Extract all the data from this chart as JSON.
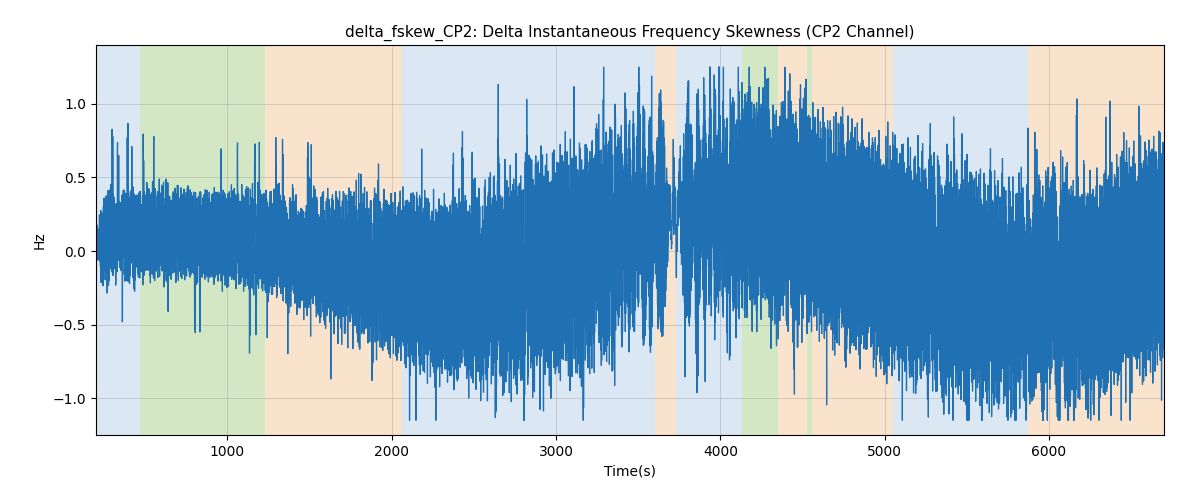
{
  "title": "delta_fskew_CP2: Delta Instantaneous Frequency Skewness (CP2 Channel)",
  "xlabel": "Time(s)",
  "ylabel": "Hz",
  "xlim": [
    200,
    6700
  ],
  "ylim": [
    -1.25,
    1.4
  ],
  "yticks": [
    -1.0,
    -0.5,
    0.0,
    0.5,
    1.0
  ],
  "xticks": [
    1000,
    2000,
    3000,
    4000,
    5000,
    6000
  ],
  "line_color": "#2070b4",
  "line_width": 0.9,
  "figsize": [
    12.0,
    5.0
  ],
  "dpi": 100,
  "background_color": "#ffffff",
  "bands": [
    {
      "xmin": 200,
      "xmax": 470,
      "color": "#b8d0e8",
      "alpha": 0.5
    },
    {
      "xmin": 470,
      "xmax": 1230,
      "color": "#a8d08a",
      "alpha": 0.5
    },
    {
      "xmin": 1230,
      "xmax": 2060,
      "color": "#f5c89a",
      "alpha": 0.5
    },
    {
      "xmin": 2060,
      "xmax": 3600,
      "color": "#b8d0e8",
      "alpha": 0.5
    },
    {
      "xmin": 3600,
      "xmax": 3730,
      "color": "#f5c89a",
      "alpha": 0.5
    },
    {
      "xmin": 3730,
      "xmax": 4130,
      "color": "#b8d0e8",
      "alpha": 0.5
    },
    {
      "xmin": 4130,
      "xmax": 4350,
      "color": "#a8d08a",
      "alpha": 0.5
    },
    {
      "xmin": 4350,
      "xmax": 4530,
      "color": "#f5c89a",
      "alpha": 0.5
    },
    {
      "xmin": 4530,
      "xmax": 4560,
      "color": "#a8d08a",
      "alpha": 0.5
    },
    {
      "xmin": 4560,
      "xmax": 5050,
      "color": "#f5c89a",
      "alpha": 0.5
    },
    {
      "xmin": 5050,
      "xmax": 5870,
      "color": "#b8d0e8",
      "alpha": 0.5
    },
    {
      "xmin": 5870,
      "xmax": 6700,
      "color": "#f5c89a",
      "alpha": 0.5
    }
  ],
  "seed": 12345,
  "n_segments": 6500
}
